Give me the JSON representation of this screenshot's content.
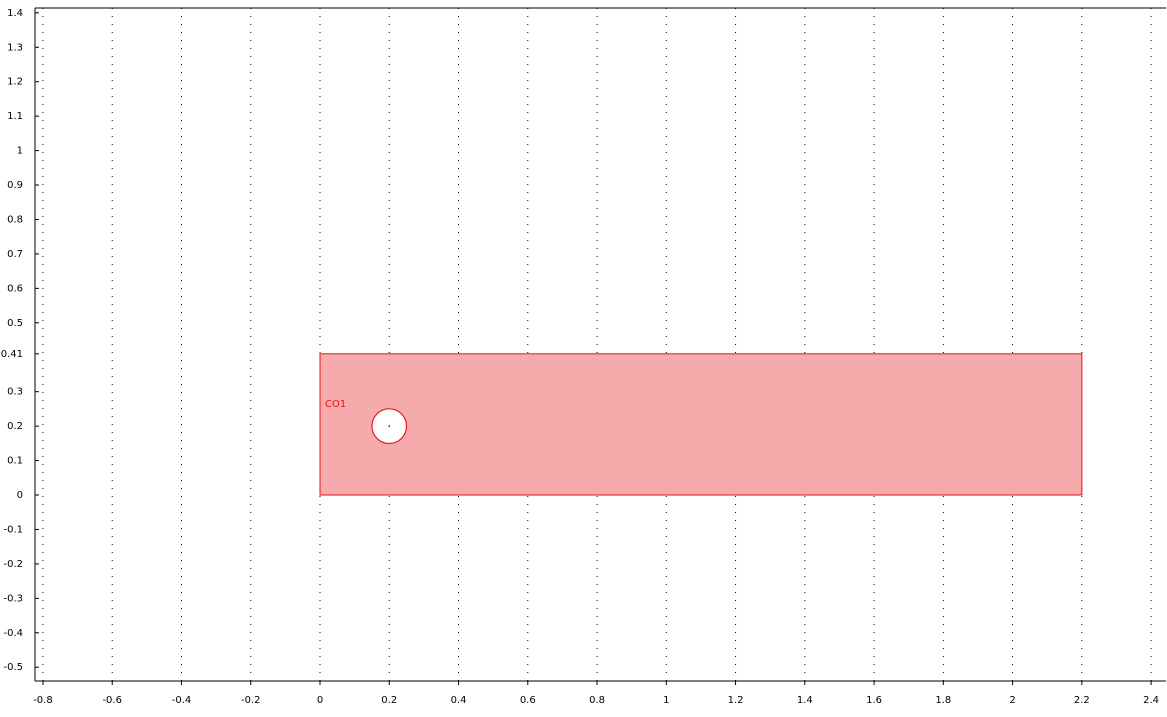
{
  "chart_data": {
    "type": "geometry",
    "xlim": [
      -0.823,
      2.443
    ],
    "ylim": [
      -0.54,
      1.414
    ],
    "xticks": [
      -0.8,
      -0.6,
      -0.4,
      -0.2,
      0,
      0.2,
      0.4,
      0.6,
      0.8,
      1,
      1.2,
      1.4,
      1.6,
      1.8,
      2,
      2.2,
      2.4
    ],
    "yticks": [
      1.4,
      1.3,
      1.2,
      1.1,
      1,
      0.9,
      0.8,
      0.7,
      0.6,
      0.5,
      0.41,
      0.3,
      0.2,
      0.1,
      0,
      -0.1,
      -0.2,
      -0.3,
      -0.4,
      -0.5
    ],
    "grid": true,
    "rectangle": {
      "label": "CO1",
      "x": [
        0,
        2.2
      ],
      "y": [
        0,
        0.41
      ],
      "fill_color": "#f4a6a8",
      "edge_color": "#e8141c"
    },
    "circle": {
      "center": [
        0.2,
        0.2
      ],
      "radius": 0.05,
      "fill_color": "#ffffff",
      "edge_color": "#e8141c"
    }
  }
}
